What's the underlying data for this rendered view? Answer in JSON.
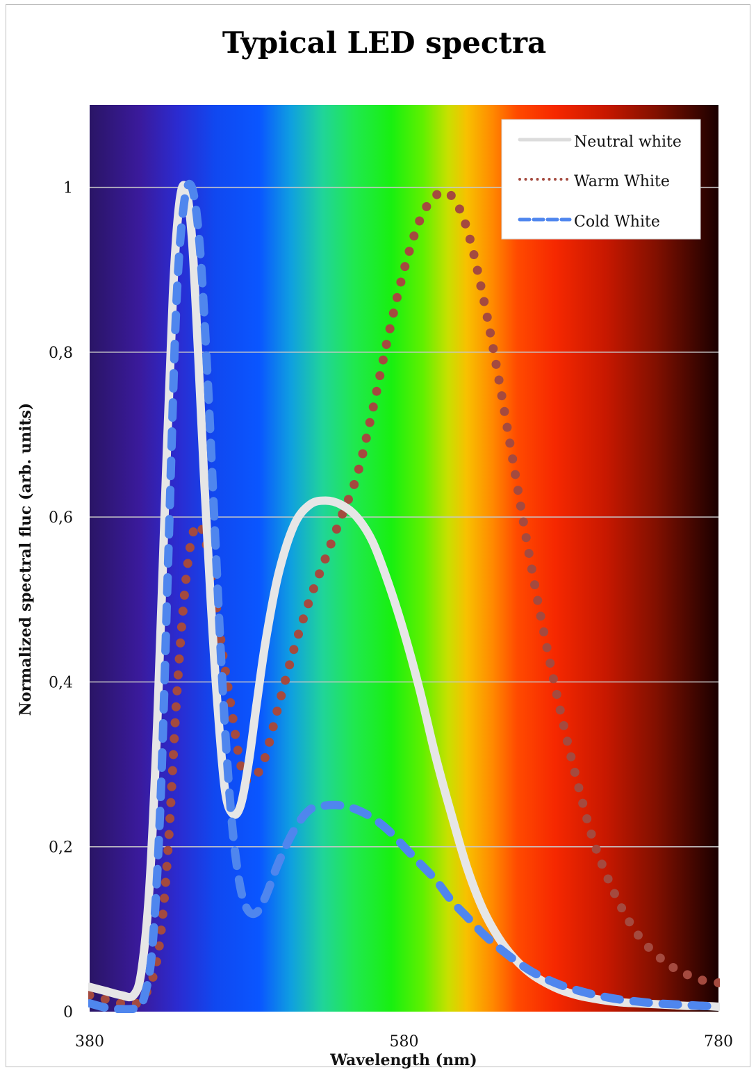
{
  "chart_data": {
    "type": "line",
    "title": "Typical LED spectra",
    "xlabel": "Wavelength (nm)",
    "ylabel": "Normalized spectral fluc (arb. units)",
    "xlim": [
      380,
      780
    ],
    "ylim": [
      0,
      1.1
    ],
    "x_ticks": [
      380,
      580,
      780
    ],
    "x_tick_labels": [
      "380",
      "580",
      "780"
    ],
    "y_ticks": [
      0,
      0.2,
      0.4,
      0.6,
      0.8,
      1
    ],
    "y_tick_labels": [
      "0",
      "0,2",
      "0,4",
      "0,6",
      "0,8",
      "1"
    ],
    "grid": true,
    "legend_position": "top-right",
    "background": "visible-spectrum gradient",
    "series": [
      {
        "name": "Neutral white",
        "color": "#e6e6e6",
        "style": "solid",
        "x": [
          380,
          390,
          400,
          408,
          413,
          418,
          423,
          428,
          433,
          437,
          441,
          445,
          449,
          453,
          457,
          461,
          466,
          471,
          476,
          481,
          486,
          492,
          500,
          510,
          520,
          530,
          540,
          550,
          560,
          570,
          580,
          590,
          600,
          610,
          620,
          630,
          640,
          650,
          660,
          670,
          680,
          690,
          700,
          710,
          720,
          730,
          740,
          750,
          760,
          770,
          780
        ],
        "y": [
          0.03,
          0.025,
          0.02,
          0.02,
          0.05,
          0.15,
          0.35,
          0.62,
          0.87,
          0.98,
          1.0,
          0.94,
          0.8,
          0.64,
          0.5,
          0.38,
          0.27,
          0.24,
          0.25,
          0.3,
          0.37,
          0.45,
          0.53,
          0.59,
          0.615,
          0.62,
          0.615,
          0.6,
          0.57,
          0.52,
          0.46,
          0.39,
          0.31,
          0.24,
          0.175,
          0.125,
          0.09,
          0.065,
          0.047,
          0.035,
          0.026,
          0.02,
          0.016,
          0.013,
          0.011,
          0.01,
          0.009,
          0.008,
          0.007,
          0.007,
          0.006
        ]
      },
      {
        "name": "Warm White",
        "color": "#a44a3f",
        "style": "dotted",
        "x": [
          380,
          390,
          400,
          410,
          415,
          420,
          425,
          430,
          435,
          440,
          445,
          450,
          455,
          460,
          465,
          470,
          475,
          480,
          490,
          500,
          510,
          520,
          530,
          540,
          550,
          560,
          570,
          580,
          590,
          600,
          610,
          620,
          630,
          640,
          650,
          660,
          670,
          680,
          690,
          700,
          710,
          720,
          730,
          740,
          750,
          760,
          770,
          780
        ],
        "y": [
          0.02,
          0.015,
          0.01,
          0.01,
          0.02,
          0.04,
          0.09,
          0.2,
          0.37,
          0.5,
          0.575,
          0.59,
          0.56,
          0.5,
          0.43,
          0.37,
          0.31,
          0.28,
          0.3,
          0.37,
          0.44,
          0.5,
          0.55,
          0.6,
          0.65,
          0.73,
          0.82,
          0.9,
          0.96,
          0.99,
          0.99,
          0.95,
          0.87,
          0.77,
          0.66,
          0.55,
          0.45,
          0.36,
          0.28,
          0.21,
          0.16,
          0.12,
          0.09,
          0.07,
          0.055,
          0.045,
          0.038,
          0.035
        ]
      },
      {
        "name": "Cold White",
        "color": "#4f86ee",
        "style": "dashed",
        "x": [
          380,
          390,
          400,
          410,
          415,
          420,
          425,
          430,
          435,
          440,
          445,
          450,
          455,
          460,
          465,
          470,
          475,
          480,
          486,
          492,
          500,
          510,
          520,
          530,
          540,
          550,
          560,
          570,
          580,
          590,
          600,
          610,
          620,
          630,
          640,
          650,
          660,
          670,
          680,
          690,
          700,
          710,
          720,
          730,
          740,
          750,
          760,
          770,
          780
        ],
        "y": [
          0.01,
          0.005,
          0.003,
          0.005,
          0.02,
          0.08,
          0.25,
          0.55,
          0.85,
          0.98,
          1.0,
          0.93,
          0.77,
          0.57,
          0.38,
          0.24,
          0.16,
          0.125,
          0.12,
          0.14,
          0.18,
          0.22,
          0.245,
          0.25,
          0.25,
          0.245,
          0.235,
          0.22,
          0.2,
          0.18,
          0.16,
          0.135,
          0.115,
          0.095,
          0.078,
          0.063,
          0.05,
          0.04,
          0.032,
          0.026,
          0.021,
          0.017,
          0.014,
          0.012,
          0.01,
          0.009,
          0.008,
          0.007,
          0.006
        ]
      }
    ]
  }
}
